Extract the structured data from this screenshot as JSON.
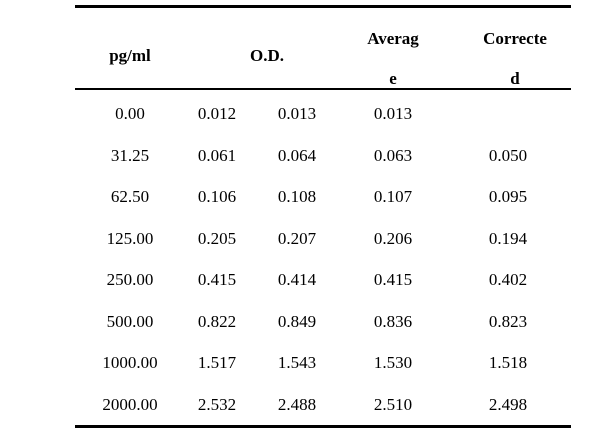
{
  "table": {
    "headers": {
      "pgml": "pg/ml",
      "od": "O.D.",
      "average_line1": "Averag",
      "average_line2": "e",
      "corrected_line1": "Correcte",
      "corrected_line2": "d"
    },
    "rows": [
      [
        "0.00",
        "0.012",
        "0.013",
        "0.013",
        ""
      ],
      [
        "31.25",
        "0.061",
        "0.064",
        "0.063",
        "0.050"
      ],
      [
        "62.50",
        "0.106",
        "0.108",
        "0.107",
        "0.095"
      ],
      [
        "125.00",
        "0.205",
        "0.207",
        "0.206",
        "0.194"
      ],
      [
        "250.00",
        "0.415",
        "0.414",
        "0.415",
        "0.402"
      ],
      [
        "500.00",
        "0.822",
        "0.849",
        "0.836",
        "0.823"
      ],
      [
        "1000.00",
        "1.517",
        "1.543",
        "1.530",
        "1.518"
      ],
      [
        "2000.00",
        "2.532",
        "2.488",
        "2.510",
        "2.498"
      ]
    ]
  }
}
